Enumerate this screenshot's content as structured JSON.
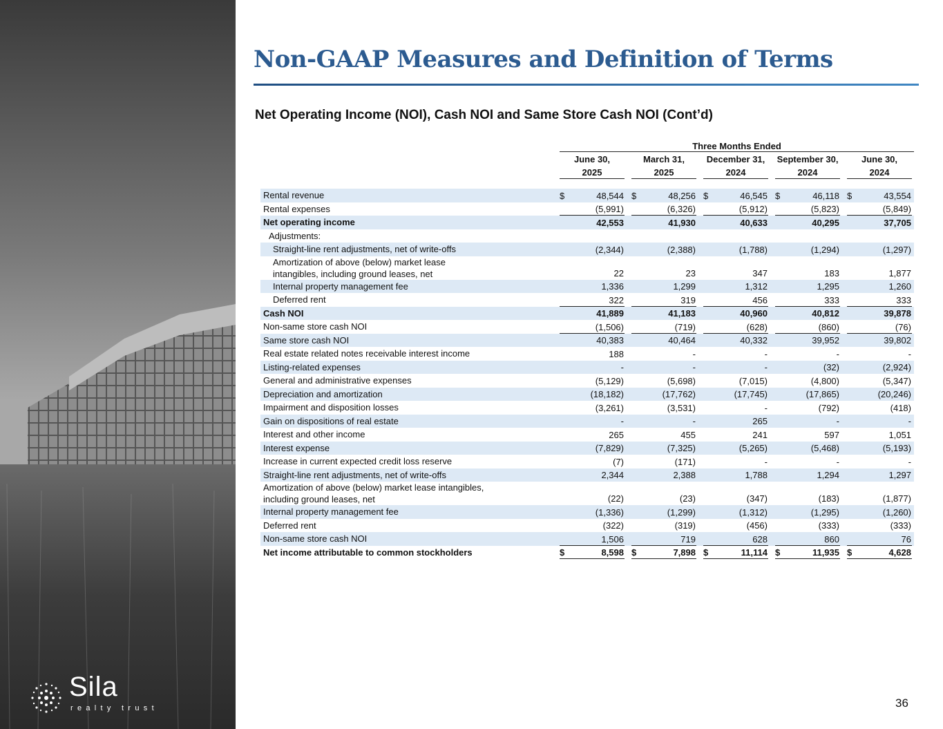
{
  "header": {
    "title": "Non-GAAP Measures and Definition of Terms",
    "subtitle": "Net Operating Income (NOI), Cash NOI and Same Store Cash NOI (Cont’d)"
  },
  "logo": {
    "name": "Sila",
    "tagline": "realty trust"
  },
  "page_number": "36",
  "table": {
    "group_header": "Three Months Ended",
    "columns": [
      [
        "June 30,",
        "2025"
      ],
      [
        "March 31,",
        "2025"
      ],
      [
        "December 31,",
        "2024"
      ],
      [
        "September 30,",
        "2024"
      ],
      [
        "June 30,",
        "2024"
      ]
    ],
    "rows": [
      {
        "label": "Rental revenue",
        "currency": "$",
        "values": [
          "48,544",
          "48,256",
          "46,545",
          "46,118",
          "43,554"
        ]
      },
      {
        "label": "Rental expenses",
        "values": [
          "(5,991)",
          "(6,326)",
          "(5,912)",
          "(5,823)",
          "(5,849)"
        ]
      },
      {
        "label": "Net operating income",
        "values": [
          "42,553",
          "41,930",
          "40,633",
          "40,295",
          "37,705"
        ]
      },
      {
        "label": "Adjustments:",
        "values": []
      },
      {
        "label": "Straight-line rent adjustments, net of write-offs",
        "values": [
          "(2,344)",
          "(2,388)",
          "(1,788)",
          "(1,294)",
          "(1,297)"
        ]
      },
      {
        "label": "Amortization of above (below) market lease\nintangibles, including ground leases, net",
        "values": [
          "22",
          "23",
          "347",
          "183",
          "1,877"
        ]
      },
      {
        "label": "Internal property management fee",
        "values": [
          "1,336",
          "1,299",
          "1,312",
          "1,295",
          "1,260"
        ]
      },
      {
        "label": "Deferred rent",
        "values": [
          "322",
          "319",
          "456",
          "333",
          "333"
        ]
      },
      {
        "label": "Cash NOI",
        "values": [
          "41,889",
          "41,183",
          "40,960",
          "40,812",
          "39,878"
        ]
      },
      {
        "label": "Non-same store cash NOI",
        "values": [
          "(1,506)",
          "(719)",
          "(628)",
          "(860)",
          "(76)"
        ]
      },
      {
        "label": "Same store cash NOI",
        "values": [
          "40,383",
          "40,464",
          "40,332",
          "39,952",
          "39,802"
        ]
      },
      {
        "label": "Real estate related notes receivable interest income",
        "values": [
          "188",
          "-",
          "-",
          "-",
          "-"
        ]
      },
      {
        "label": "Listing-related expenses",
        "values": [
          "-",
          "-",
          "-",
          "(32)",
          "(2,924)"
        ]
      },
      {
        "label": "General and administrative expenses",
        "values": [
          "(5,129)",
          "(5,698)",
          "(7,015)",
          "(4,800)",
          "(5,347)"
        ]
      },
      {
        "label": "Depreciation and amortization",
        "values": [
          "(18,182)",
          "(17,762)",
          "(17,745)",
          "(17,865)",
          "(20,246)"
        ]
      },
      {
        "label": "Impairment and disposition losses",
        "values": [
          "(3,261)",
          "(3,531)",
          "-",
          "(792)",
          "(418)"
        ]
      },
      {
        "label": "Gain on dispositions of real estate",
        "values": [
          "-",
          "-",
          "265",
          "-",
          "-"
        ]
      },
      {
        "label": "Interest and other income",
        "values": [
          "265",
          "455",
          "241",
          "597",
          "1,051"
        ]
      },
      {
        "label": "Interest expense",
        "values": [
          "(7,829)",
          "(7,325)",
          "(5,265)",
          "(5,468)",
          "(5,193)"
        ]
      },
      {
        "label": "Increase in current expected credit loss reserve",
        "values": [
          "(7)",
          "(171)",
          "-",
          "-",
          "-"
        ]
      },
      {
        "label": "Straight-line rent adjustments, net of write-offs",
        "values": [
          "2,344",
          "2,388",
          "1,788",
          "1,294",
          "1,297"
        ]
      },
      {
        "label": "Amortization of above (below) market lease intangibles,\nincluding ground leases, net",
        "values": [
          "(22)",
          "(23)",
          "(347)",
          "(183)",
          "(1,877)"
        ]
      },
      {
        "label": "Internal property management fee",
        "values": [
          "(1,336)",
          "(1,299)",
          "(1,312)",
          "(1,295)",
          "(1,260)"
        ]
      },
      {
        "label": "Deferred rent",
        "values": [
          "(322)",
          "(319)",
          "(456)",
          "(333)",
          "(333)"
        ]
      },
      {
        "label": "Non-same store cash NOI",
        "values": [
          "1,506",
          "719",
          "628",
          "860",
          "76"
        ]
      },
      {
        "label": "Net income attributable to common stockholders",
        "currency": "$",
        "values": [
          "8,598",
          "7,898",
          "11,114",
          "11,935",
          "4,628"
        ]
      }
    ]
  }
}
